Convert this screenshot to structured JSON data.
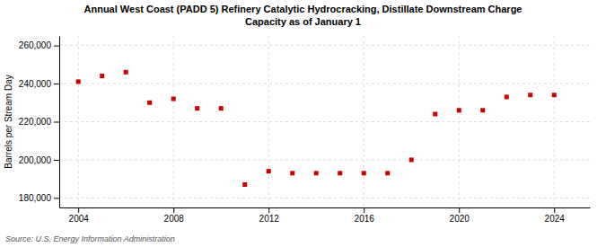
{
  "chart_data": {
    "type": "scatter",
    "title": "Annual West Coast (PADD 5) Refinery Catalytic Hydrocracking, Distillate Downstream Charge",
    "subtitle": "Capacity as of January 1",
    "ylabel": "Barrels per Stream Day",
    "annotations": [
      "Source: U.S. Energy Information Administration"
    ],
    "x": [
      2004,
      2005,
      2006,
      2007,
      2008,
      2009,
      2010,
      2011,
      2012,
      2013,
      2014,
      2015,
      2016,
      2017,
      2018,
      2019,
      2020,
      2021,
      2022,
      2023,
      2024
    ],
    "values": [
      241000,
      244000,
      246000,
      230000,
      232000,
      227000,
      227000,
      187000,
      194000,
      193000,
      193000,
      193000,
      193000,
      193000,
      200000,
      224000,
      226000,
      226000,
      233000,
      234000,
      234000
    ],
    "color": "#cc0000",
    "marker": "square",
    "xlim": [
      2003.2,
      2025.5
    ],
    "xticks": [
      2004,
      2008,
      2012,
      2016,
      2020,
      2024
    ],
    "ylim": [
      175000,
      265000
    ],
    "yticks": [
      {
        "value": 180000,
        "label": "180,000"
      },
      {
        "value": 200000,
        "label": "200,000"
      },
      {
        "value": 220000,
        "label": "220,000"
      },
      {
        "value": 240000,
        "label": "240,000"
      },
      {
        "value": 260000,
        "label": "260,000"
      }
    ],
    "grid": true
  }
}
